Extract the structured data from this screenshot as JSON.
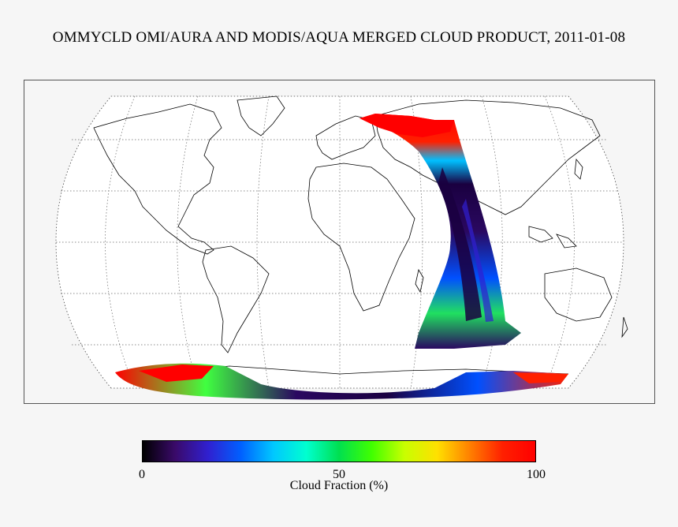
{
  "title": "OMMYCLD OMI/AURA AND MODIS/AQUA MERGED CLOUD PRODUCT, 2011-01-08",
  "map": {
    "projection": "robinson",
    "graticule": "dotted",
    "coastlines": true,
    "swath_orbits": 1
  },
  "colorbar": {
    "label": "Cloud Fraction (%)",
    "ticks": [
      "0",
      "50",
      "100"
    ],
    "range": [
      0,
      100
    ],
    "colormap": [
      "#000000",
      "#3a0a6a",
      "#3020d0",
      "#0060ff",
      "#00c8ff",
      "#00ffd0",
      "#00e050",
      "#40ff00",
      "#c8ff00",
      "#ffe000",
      "#ff8000",
      "#ff2000",
      "#ff0000"
    ]
  }
}
